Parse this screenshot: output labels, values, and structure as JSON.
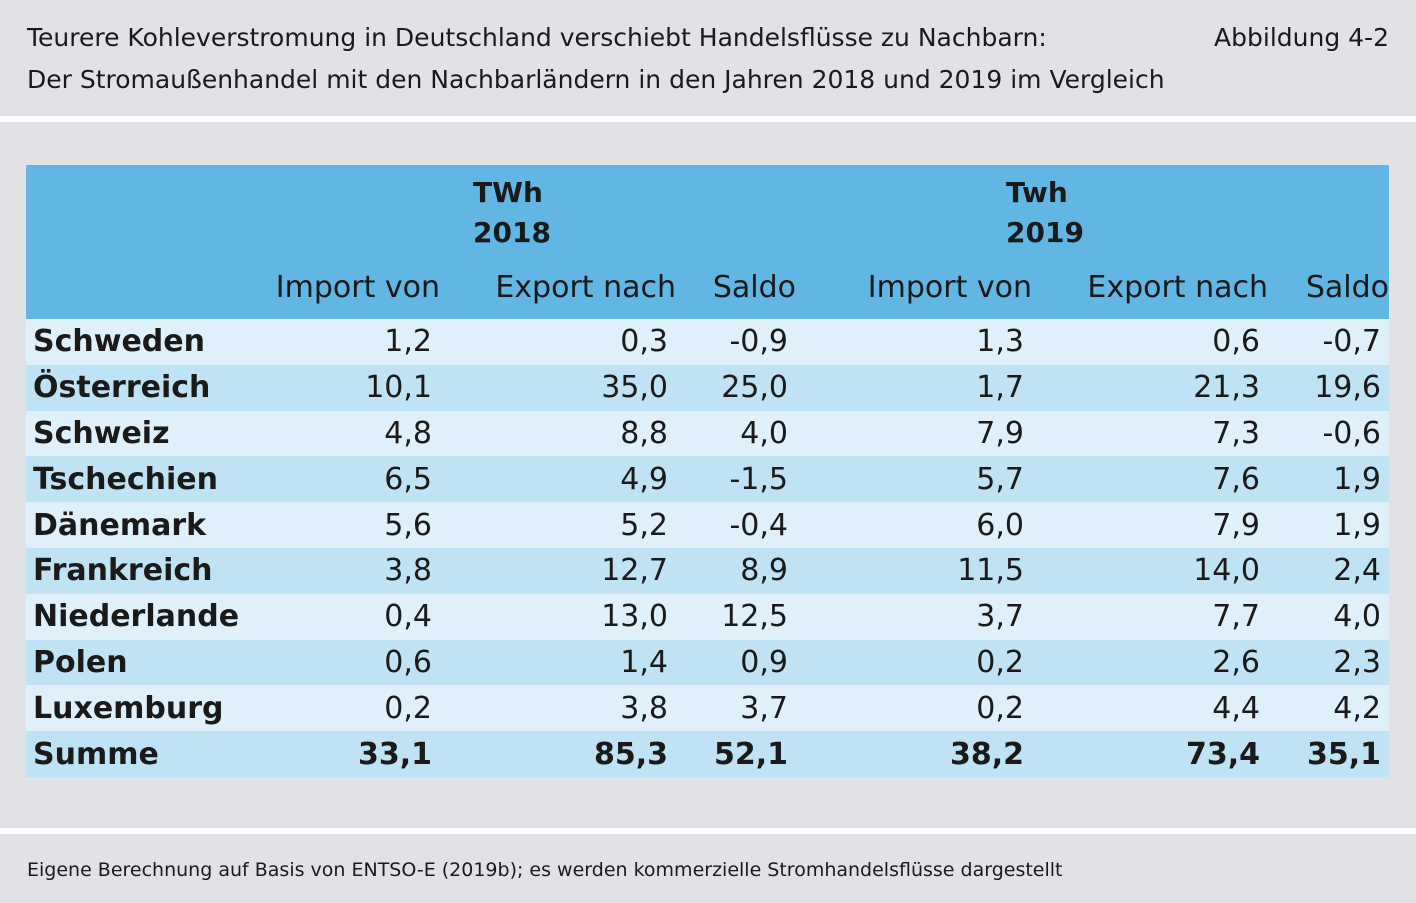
{
  "header": {
    "title_line1": "Teurere Kohleverstromung in Deutschland verschiebt Handelsflüsse zu Nachbarn:",
    "title_line2": "Der Stromaußenhandel mit den Nachbarländern in den Jahren 2018 und 2019 im Vergleich",
    "figure_label": "Abbildung 4-2"
  },
  "table": {
    "groups": [
      {
        "unit": "TWh",
        "year": "2018"
      },
      {
        "unit": "Twh",
        "year": "2019"
      }
    ],
    "columns": [
      "Import von",
      "Export nach",
      "Saldo",
      "Import von",
      "Export nach",
      "Saldo"
    ],
    "rows": [
      {
        "country": "Schweden",
        "values": [
          "1,2",
          "0,3",
          "-0,9",
          "1,3",
          "0,6",
          "-0,7"
        ]
      },
      {
        "country": "Österreich",
        "values": [
          "10,1",
          "35,0",
          "25,0",
          "1,7",
          "21,3",
          "19,6"
        ]
      },
      {
        "country": "Schweiz",
        "values": [
          "4,8",
          "8,8",
          "4,0",
          "7,9",
          "7,3",
          "-0,6"
        ]
      },
      {
        "country": "Tschechien",
        "values": [
          "6,5",
          "4,9",
          "-1,5",
          "5,7",
          "7,6",
          "1,9"
        ]
      },
      {
        "country": "Dänemark",
        "values": [
          "5,6",
          "5,2",
          "-0,4",
          "6,0",
          "7,9",
          "1,9"
        ]
      },
      {
        "country": "Frankreich",
        "values": [
          "3,8",
          "12,7",
          "8,9",
          "11,5",
          "14,0",
          "2,4"
        ]
      },
      {
        "country": "Niederlande",
        "values": [
          "0,4",
          "13,0",
          "12,5",
          "3,7",
          "7,7",
          "4,0"
        ]
      },
      {
        "country": "Polen",
        "values": [
          "0,6",
          "1,4",
          "0,9",
          "0,2",
          "2,6",
          "2,3"
        ]
      },
      {
        "country": "Luxemburg",
        "values": [
          "0,2",
          "3,8",
          "3,7",
          "0,2",
          "4,4",
          "4,2"
        ]
      },
      {
        "country": "Summe",
        "values": [
          "33,1",
          "85,3",
          "52,1",
          "38,2",
          "73,4",
          "35,1"
        ]
      }
    ]
  },
  "footer": {
    "source": "Eigene Berechnung auf Basis von ENTSO-E (2019b); es werden kommerzielle Stromhandelsflüsse dargestellt"
  },
  "colors": {
    "header_blue": "#62b6e3",
    "row_light": "#dff0fa",
    "row_medium": "#bfe2f4",
    "panel_gray": "#e1e2e6"
  }
}
